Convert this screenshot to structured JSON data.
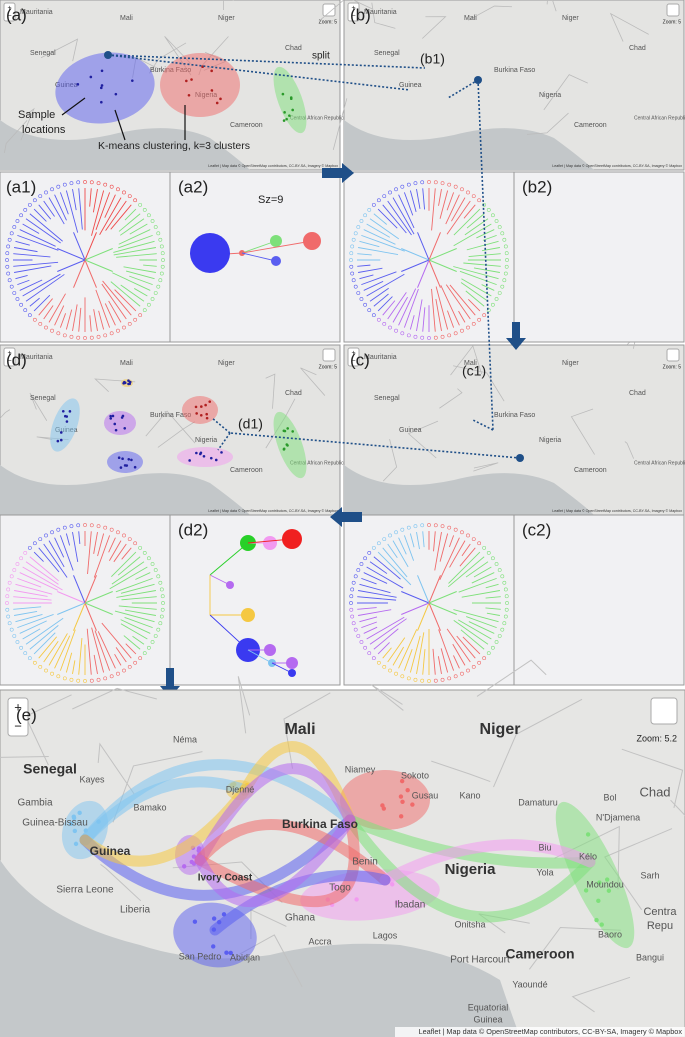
{
  "panels": {
    "a": "(a)",
    "b": "(b)",
    "c": "(c)",
    "d": "(d)",
    "e": "(e)",
    "a1": "(a1)",
    "a2": "(a2)",
    "b1": "(b1)",
    "b2": "(b2)",
    "c1": "(c1)",
    "c2": "(c2)",
    "d1": "(d1)",
    "d2": "(d2)"
  },
  "annotations": {
    "split": "split",
    "sample": "Sample",
    "locations": "locations",
    "kmeans": "K-means clustering, k=3 clusters",
    "size": "Sz=9"
  },
  "small_maps": {
    "zoom": "Zoom: 5",
    "zoom_in": "+",
    "zoom_out": "−",
    "attribution": "Leaflet | Map data © OpenStreetMap contributors, CC-BY-SA, Imagery © Mapbox",
    "places": [
      "Mauritania",
      "Mali",
      "Niger",
      "Chad",
      "Senegal",
      "Guinea",
      "Burkina Faso",
      "Nigeria",
      "Cameroon",
      "Central African Republic"
    ]
  },
  "large_map": {
    "zoom_in": "+",
    "zoom_out": "−",
    "zoom": "Zoom: 5.2",
    "attribution": "Leaflet | Map data © OpenStreetMap contributors, CC-BY-SA, Imagery © Mapbox",
    "places": [
      "Néma",
      "Mali",
      "Niger",
      "Senegal",
      "Kayes",
      "Gambia",
      "Guinea-Bissau",
      "Guinea",
      "Bamako",
      "Djenné",
      "Niamey",
      "Sokoto",
      "Gusau",
      "Kano",
      "Damaturu",
      "Bol",
      "N'Djamena",
      "Chad",
      "Burkina Faso",
      "Nigeria",
      "Biu",
      "Yola",
      "Kélo",
      "Moundou",
      "Sarh",
      "Sierra Leone",
      "Togo",
      "Benin",
      "Ghana",
      "Ivory Coast",
      "Ibadan",
      "Onitsha",
      "Liberia",
      "Lagos",
      "Accra",
      "San Pedro",
      "Abidjan",
      "Port Harcourt",
      "Cameroon",
      "Baoro",
      "Bangui",
      "Centra",
      "Repu",
      "Yaoundé",
      "Equatorial",
      "Guinea"
    ]
  }
}
